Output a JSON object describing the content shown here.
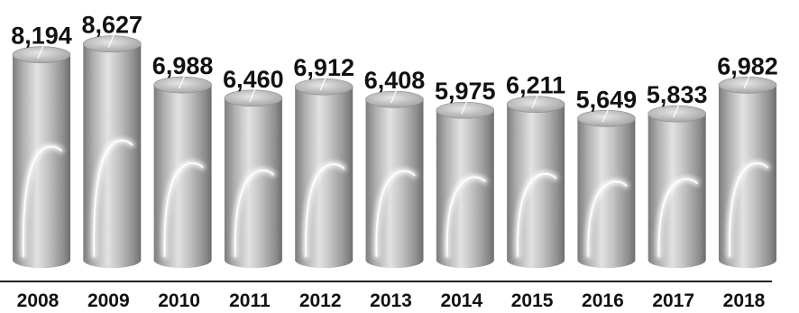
{
  "chart_data": {
    "type": "bar",
    "style": "3d-cylinder",
    "title": "",
    "xlabel": "",
    "ylabel": "",
    "categories": [
      "2008",
      "2009",
      "2010",
      "2011",
      "2012",
      "2013",
      "2014",
      "2015",
      "2016",
      "2017",
      "2018"
    ],
    "values": [
      8194,
      8627,
      6988,
      6460,
      6912,
      6408,
      5975,
      6211,
      5649,
      5833,
      6982
    ],
    "value_labels": [
      "8,194",
      "8,627",
      "6,988",
      "6,460",
      "6,912",
      "6,408",
      "5,975",
      "6,211",
      "5,649",
      "5,833",
      "6,982"
    ],
    "ylim": [
      0,
      9300
    ],
    "grid": false,
    "legend": "none",
    "colors": {
      "bar": "#b4b4b4",
      "axis": "#222222",
      "text": "#111111"
    }
  }
}
